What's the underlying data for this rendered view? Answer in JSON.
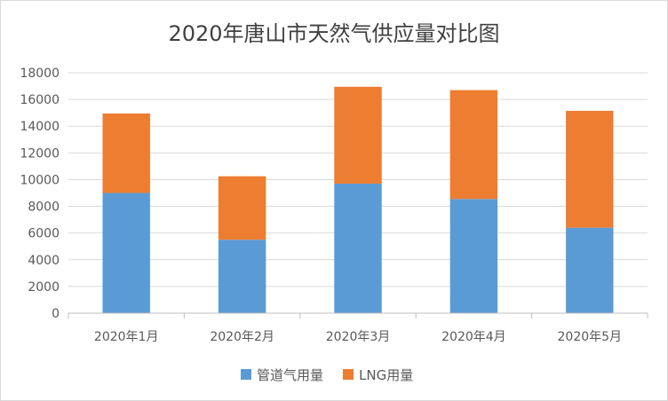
{
  "chart_data": {
    "type": "bar",
    "stacked": true,
    "title": "2020年唐山市天然气供应量对比图",
    "xlabel": "",
    "ylabel": "",
    "categories": [
      "2020年1月",
      "2020年2月",
      "2020年3月",
      "2020年4月",
      "2020年5月"
    ],
    "series": [
      {
        "name": "管道气用量",
        "color": "#5B9BD5",
        "values": [
          9000,
          5500,
          9700,
          8550,
          6400
        ]
      },
      {
        "name": "LNG用量",
        "color": "#ED7D31",
        "values": [
          5950,
          4750,
          7250,
          8150,
          8750
        ]
      }
    ],
    "ylim": [
      0,
      18000
    ],
    "yticks": [
      0,
      2000,
      4000,
      6000,
      8000,
      10000,
      12000,
      14000,
      16000,
      18000
    ],
    "grid": true,
    "legend": "bottom"
  }
}
